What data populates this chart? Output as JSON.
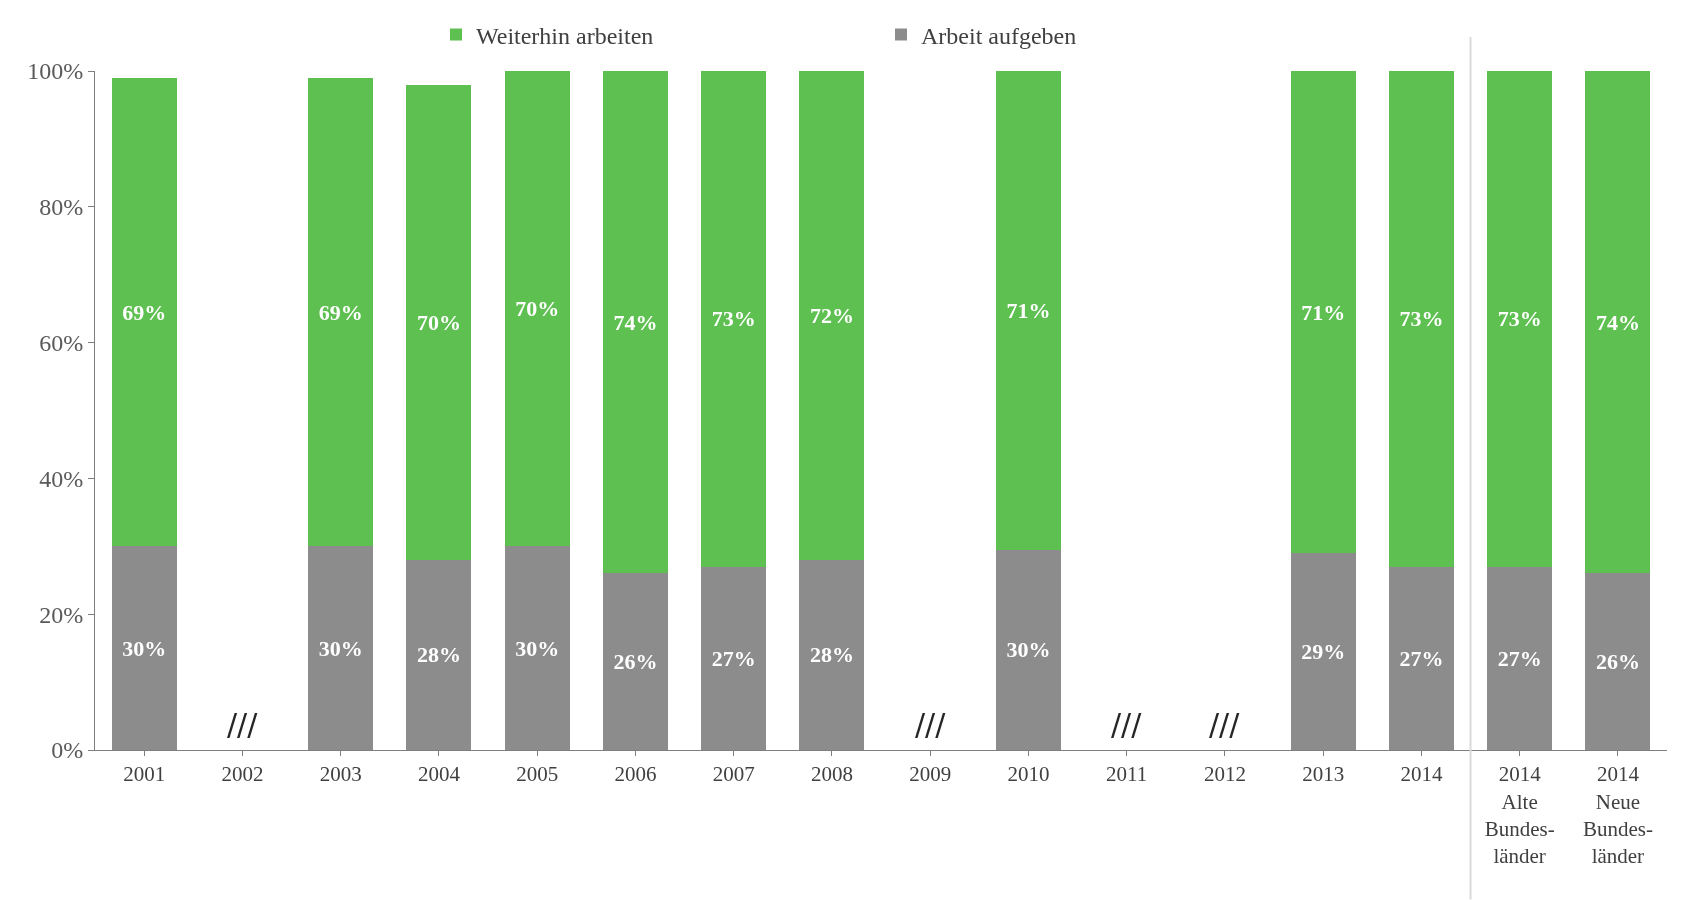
{
  "chart_data": {
    "type": "bar",
    "stacked": true,
    "categories": [
      "2001",
      "2002",
      "2003",
      "2004",
      "2005",
      "2006",
      "2007",
      "2008",
      "2009",
      "2010",
      "2011",
      "2012",
      "2013",
      "2014",
      "2014\nAlte\nBundes-\nländer",
      "2014\nNeue\nBundes-\nländer"
    ],
    "series": [
      {
        "name": "Arbeit aufgeben",
        "color": "#8c8c8c",
        "values": [
          30,
          null,
          30,
          28,
          30,
          26,
          27,
          28,
          null,
          29.5,
          null,
          null,
          29,
          27,
          27,
          26
        ],
        "value_labels": [
          "30%",
          null,
          "30%",
          "28%",
          "30%",
          "26%",
          "27%",
          "28%",
          null,
          "30%",
          null,
          null,
          "29%",
          "27%",
          "27%",
          "26%"
        ]
      },
      {
        "name": "Weiterhin arbeiten",
        "color": "#5ec050",
        "values": [
          69,
          null,
          69,
          70,
          70,
          74,
          73,
          72,
          null,
          70.5,
          null,
          null,
          71,
          73,
          73,
          74
        ],
        "value_labels": [
          "69%",
          null,
          "69%",
          "70%",
          "70%",
          "74%",
          "73%",
          "72%",
          null,
          "71%",
          null,
          null,
          "71%",
          "73%",
          "73%",
          "74%"
        ]
      }
    ],
    "ylim": [
      0,
      100
    ],
    "yticks": [
      {
        "value": 0,
        "label": "0%"
      },
      {
        "value": 20,
        "label": "20%"
      },
      {
        "value": 40,
        "label": "40%"
      },
      {
        "value": 60,
        "label": "60%"
      },
      {
        "value": 80,
        "label": "80%"
      },
      {
        "value": 100,
        "label": "100%"
      }
    ],
    "annotations": [
      "///",
      "///",
      "///",
      "///"
    ],
    "legend": "top"
  }
}
